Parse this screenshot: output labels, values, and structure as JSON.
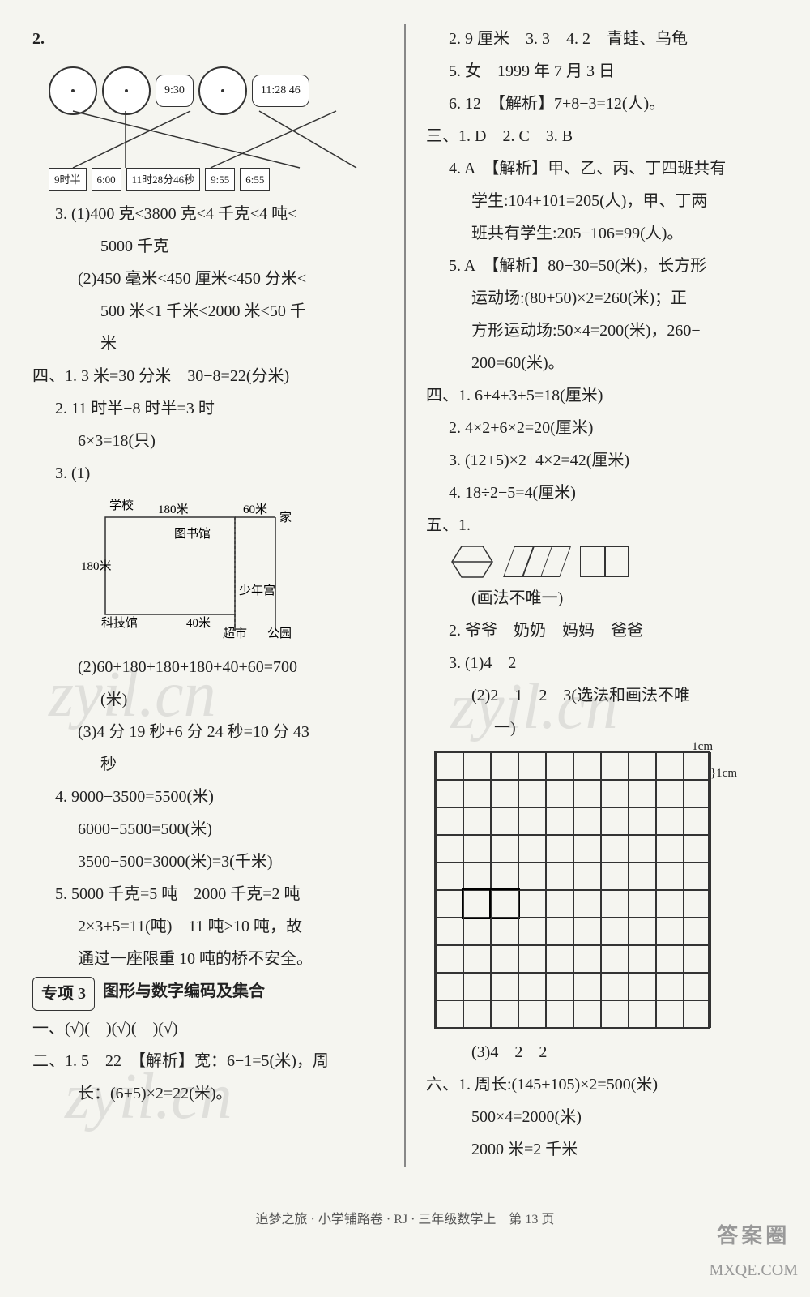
{
  "left": {
    "q2": "2.",
    "clocks": {
      "digital1": "9:30",
      "digital2": "11:28 46",
      "labels": [
        "9时半",
        "6:00",
        "11时28分46秒",
        "9:55",
        "6:55"
      ]
    },
    "q3_1": "3. (1)400 克<3800 克<4 千克<4 吨<",
    "q3_1b": "5000 千克",
    "q3_2": "(2)450 毫米<450 厘米<450 分米<",
    "q3_2b": "500 米<1 千米<2000 米<50 千",
    "q3_2c": "米",
    "s4_1": "四、1. 3 米=30 分米　30−8=22(分米)",
    "s4_2": "2. 11 时半−8 时半=3 时",
    "s4_2b": "6×3=18(只)",
    "s4_3": "3. (1)",
    "map": {
      "top1": "180米",
      "top2": "60米",
      "school": "学校",
      "home": "家",
      "library": "图书馆",
      "left": "180米",
      "youth": "少年宫",
      "tech": "科技馆",
      "dist": "40米",
      "market": "超市",
      "park": "公园"
    },
    "s4_3_2": "(2)60+180+180+180+40+60=700",
    "s4_3_2b": "(米)",
    "s4_3_3": "(3)4 分 19 秒+6 分 24 秒=10 分 43",
    "s4_3_3b": "秒",
    "s4_4a": "4. 9000−3500=5500(米)",
    "s4_4b": "6000−5500=500(米)",
    "s4_4c": "3500−500=3000(米)=3(千米)",
    "s4_5a": "5. 5000 千克=5 吨　2000 千克=2 吨",
    "s4_5b": "2×3+5=11(吨)　11 吨>10 吨，故",
    "s4_5c": "通过一座限重 10 吨的桥不安全。",
    "sec3_label": "专项 3",
    "sec3_title": "图形与数字编码及集合",
    "sec_yi": "一、(√)(　)(√)(　)(√)",
    "sec_er": "二、1. 5　22　【解析】宽：6−1=5(米)，周",
    "sec_er_b": "长：(6+5)×2=22(米)。"
  },
  "right": {
    "r2": "2. 9 厘米　3. 3　4. 2　青蛙、乌龟",
    "r5": "5. 女　1999 年 7 月 3 日",
    "r6": "6. 12　【解析】7+8−3=12(人)。",
    "s3": "三、1. D　2. C　3. B",
    "s3_4a": "4. A　【解析】甲、乙、丙、丁四班共有",
    "s3_4b": "学生:104+101=205(人)，甲、丁两",
    "s3_4c": "班共有学生:205−106=99(人)。",
    "s3_5a": "5. A　【解析】80−30=50(米)，长方形",
    "s3_5b": "运动场:(80+50)×2=260(米)；正",
    "s3_5c": "方形运动场:50×4=200(米)，260−",
    "s3_5d": "200=60(米)。",
    "s4_1": "四、1. 6+4+3+5=18(厘米)",
    "s4_2": "2. 4×2+6×2=20(厘米)",
    "s4_3": "3. (12+5)×2+4×2=42(厘米)",
    "s4_4": "4. 18÷2−5=4(厘米)",
    "s5_1": "五、1.",
    "s5_1_note": "(画法不唯一)",
    "s5_2": "2. 爷爷　奶奶　妈妈　爸爸",
    "s5_3": "3. (1)4　2",
    "s5_3_2a": "(2)2　1　2　3(选法和画法不唯",
    "s5_3_2b": "一)",
    "grid_label_top": "1cm",
    "grid_label_right": "1cm",
    "s5_3_3": "(3)4　2　2",
    "s6_1a": "六、1. 周长:(145+105)×2=500(米)",
    "s6_1b": "500×4=2000(米)",
    "s6_1c": "2000 米=2 千米"
  },
  "footer": "追梦之旅 · 小学铺路卷 · RJ · 三年级数学上　第 13 页",
  "corner": {
    "main": "答案圈",
    "sub": "MXQE.COM"
  },
  "watermark": "zyil.cn"
}
